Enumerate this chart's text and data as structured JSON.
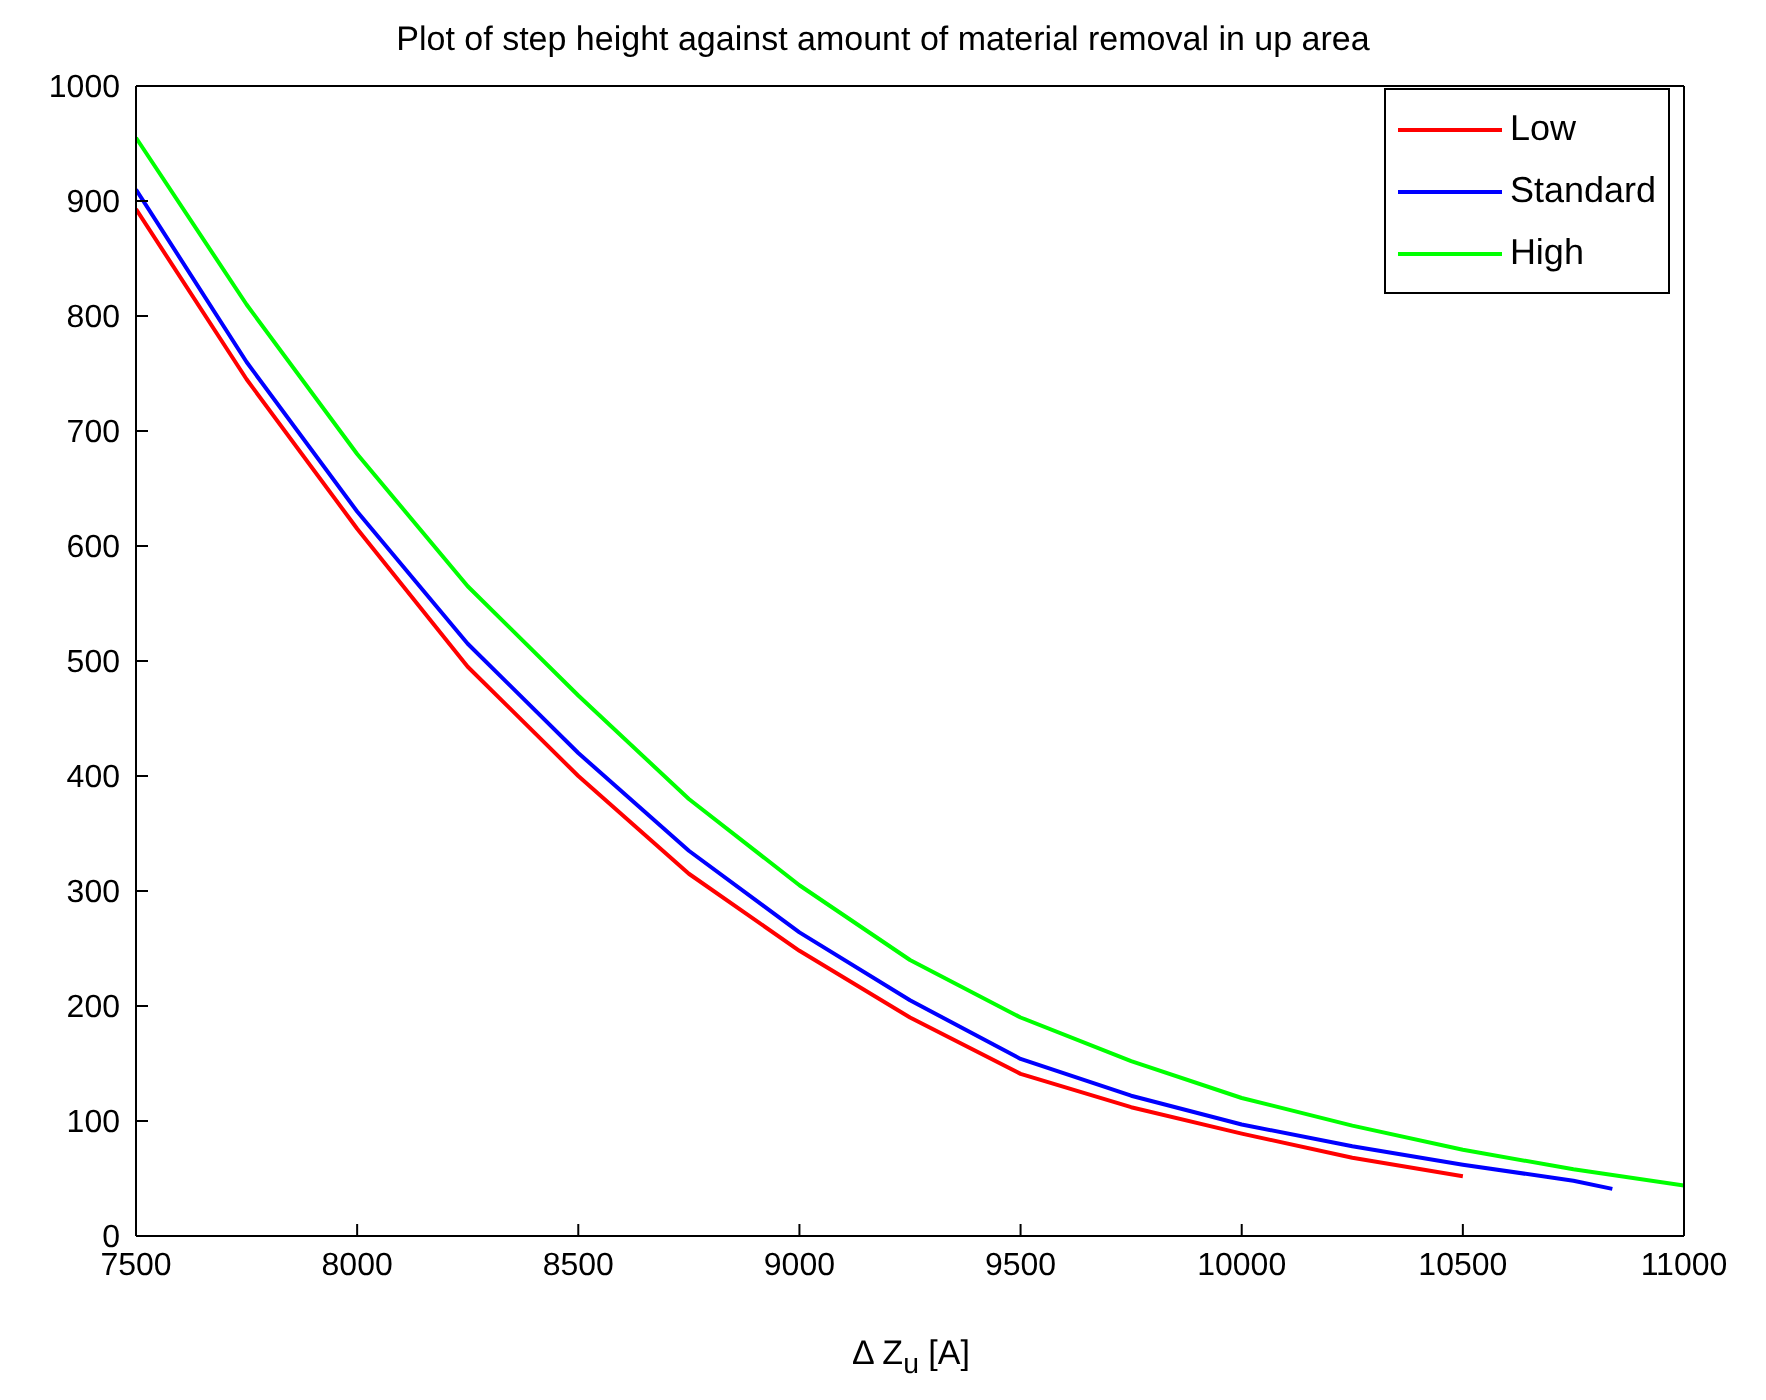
{
  "chart_data": {
    "type": "line",
    "title": "Plot of step height against amount of material removal in up area",
    "xlabel": "Δ Z$_{u}$ [A]",
    "xlim": [
      7500,
      11000
    ],
    "xticks": [
      7500,
      8000,
      8500,
      9000,
      9500,
      10000,
      10500,
      11000
    ],
    "ylim": [
      0,
      1000
    ],
    "yticks": [
      0,
      100,
      200,
      300,
      400,
      500,
      600,
      700,
      800,
      900,
      1000
    ],
    "legend": "top right",
    "marker": "none",
    "line_style": "solid",
    "series": [
      {
        "name": "Low",
        "color": "#ff0000",
        "x": [
          7500,
          7750,
          8000,
          8250,
          8500,
          8750,
          9000,
          9250,
          9500,
          9750,
          10000,
          10250,
          10500
        ],
        "values": [
          893,
          745,
          615,
          495,
          400,
          315,
          248,
          190,
          141,
          112,
          89,
          68,
          52
        ]
      },
      {
        "name": "Standard",
        "color": "#0000ff",
        "x": [
          7500,
          7750,
          8000,
          8250,
          8500,
          8750,
          9000,
          9250,
          9500,
          9750,
          10000,
          10250,
          10500,
          10750,
          10838
        ],
        "values": [
          910,
          760,
          630,
          515,
          420,
          335,
          264,
          205,
          154,
          122,
          97,
          78,
          62,
          48,
          41
        ]
      },
      {
        "name": "High",
        "color": "#00ff00",
        "x": [
          7500,
          7750,
          8000,
          8250,
          8500,
          8750,
          9000,
          9250,
          9500,
          9750,
          10000,
          10250,
          10500,
          10750,
          11000
        ],
        "values": [
          955,
          810,
          680,
          565,
          470,
          380,
          305,
          240,
          190,
          152,
          120,
          96,
          75,
          58,
          44
        ]
      }
    ]
  }
}
